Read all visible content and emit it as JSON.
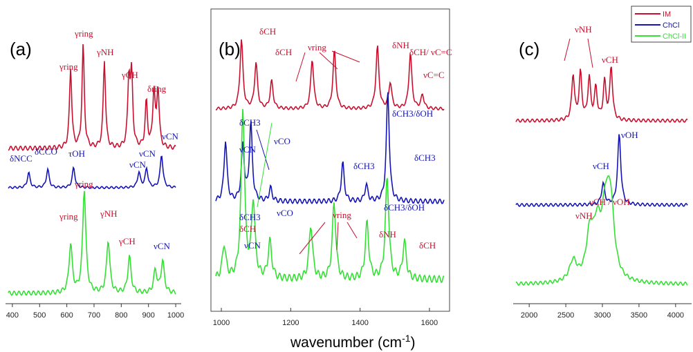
{
  "xlabel": {
    "text": "wavenumber (cm",
    "sup": "-1",
    "close": ")"
  },
  "colors": {
    "IM": "#c8102e",
    "ChCl": "#1414b4",
    "ChCl-II": "#33e033"
  },
  "legend": [
    {
      "name": "IM",
      "color": "#c8102e"
    },
    {
      "name": "ChCl",
      "color": "#1414b4"
    },
    {
      "name": "ChCl-II",
      "color": "#33e033"
    }
  ],
  "chart_data": [
    {
      "panel": "(a)",
      "type": "line",
      "xlim": [
        380,
        1010
      ],
      "ticks": [
        400,
        500,
        600,
        700,
        800,
        900,
        1000
      ],
      "series": [
        {
          "name": "IM",
          "color": "#c8102e",
          "peaks": [
            [
              614,
              0.78
            ],
            [
              660,
              1.0
            ],
            [
              738,
              0.86
            ],
            [
              828,
              0.66
            ],
            [
              838,
              0.68
            ],
            [
              892,
              0.45
            ],
            [
              920,
              0.56
            ],
            [
              935,
              0.58
            ]
          ]
        },
        {
          "name": "ChCl",
          "color": "#1414b4",
          "peaks": [
            [
              460,
              0.3
            ],
            [
              530,
              0.37
            ],
            [
              625,
              0.4
            ],
            [
              865,
              0.31
            ],
            [
              893,
              0.38
            ],
            [
              948,
              0.66
            ]
          ]
        },
        {
          "name": "ChCl-II",
          "color": "#33e033",
          "peaks": [
            [
              614,
              0.47
            ],
            [
              664,
              1.0
            ],
            [
              752,
              0.51
            ],
            [
              830,
              0.35
            ],
            [
              925,
              0.22
            ],
            [
              952,
              0.31
            ]
          ]
        }
      ],
      "annotations": [
        {
          "text": "γring",
          "color": "#c8102e"
        },
        {
          "text": "γring",
          "color": "#c8102e"
        },
        {
          "text": "γNH",
          "color": "#c8102e"
        },
        {
          "text": "γCH",
          "color": "#c8102e"
        },
        {
          "text": "δring",
          "color": "#c8102e"
        },
        {
          "text": "νCN",
          "color": "#1414b4"
        },
        {
          "text": "δNCC",
          "color": "#1414b4"
        },
        {
          "text": "δCCO",
          "color": "#1414b4"
        },
        {
          "text": "τOH",
          "color": "#1414b4"
        },
        {
          "text": "νCN",
          "color": "#1414b4"
        },
        {
          "text": "νCN",
          "color": "#1414b4"
        },
        {
          "text": "γring",
          "color": "#c8102e"
        },
        {
          "text": "γring",
          "color": "#c8102e"
        },
        {
          "text": "γNH",
          "color": "#c8102e"
        },
        {
          "text": "γCH",
          "color": "#c8102e"
        },
        {
          "text": "νCN",
          "color": "#1414b4"
        }
      ]
    },
    {
      "panel": "(b)",
      "type": "line",
      "xlim": [
        980,
        1650
      ],
      "ticks": [
        1000,
        1200,
        1400,
        1600
      ],
      "series": [
        {
          "name": "IM",
          "color": "#c8102e",
          "peaks": [
            [
              1058,
              1.0
            ],
            [
              1100,
              0.66
            ],
            [
              1145,
              0.4
            ],
            [
              1262,
              0.72
            ],
            [
              1326,
              0.84
            ],
            [
              1450,
              0.9
            ],
            [
              1487,
              0.38
            ],
            [
              1545,
              0.8
            ],
            [
              1580,
              0.2
            ]
          ]
        },
        {
          "name": "ChCl",
          "color": "#1414b4",
          "peaks": [
            [
              1012,
              0.55
            ],
            [
              1062,
              0.5
            ],
            [
              1085,
              0.7
            ],
            [
              1142,
              0.12
            ],
            [
              1350,
              0.35
            ],
            [
              1418,
              0.15
            ],
            [
              1480,
              1.0
            ]
          ]
        },
        {
          "name": "ChCl-II",
          "color": "#33e033",
          "peaks": [
            [
              1008,
              0.2
            ],
            [
              1062,
              1.0
            ],
            [
              1092,
              0.45
            ],
            [
              1140,
              0.22
            ],
            [
              1258,
              0.32
            ],
            [
              1325,
              0.45
            ],
            [
              1420,
              0.33
            ],
            [
              1478,
              0.6
            ],
            [
              1528,
              0.22
            ]
          ]
        }
      ],
      "annotations": [
        {
          "text": "δCH",
          "color": "#c8102e"
        },
        {
          "text": "δCH",
          "color": "#c8102e"
        },
        {
          "text": "νring",
          "color": "#c8102e"
        },
        {
          "text": "δNH",
          "color": "#c8102e"
        },
        {
          "text": "δCH/",
          "color": "#c8102e"
        },
        {
          "text": "νC=C",
          "color": "#c8102e"
        },
        {
          "text": "νC=C",
          "color": "#c8102e"
        },
        {
          "text": "δCH3/δOH",
          "color": "#1414b4"
        },
        {
          "text": "δCH3",
          "color": "#1414b4"
        },
        {
          "text": "νCN",
          "color": "#1414b4"
        },
        {
          "text": "νCO",
          "color": "#1414b4"
        },
        {
          "text": "δCH3",
          "color": "#1414b4"
        },
        {
          "text": "δCH3",
          "color": "#1414b4"
        },
        {
          "text": "δCH3/δOH",
          "color": "#1414b4"
        },
        {
          "text": "δCH3",
          "color": "#1414b4"
        },
        {
          "text": "δCH",
          "color": "#c8102e"
        },
        {
          "text": "νCO",
          "color": "#1414b4"
        },
        {
          "text": "νring",
          "color": "#c8102e"
        },
        {
          "text": "νCN",
          "color": "#1414b4"
        },
        {
          "text": "δNH",
          "color": "#c8102e"
        },
        {
          "text": "δCH",
          "color": "#c8102e"
        }
      ]
    },
    {
      "panel": "(c)",
      "type": "line",
      "xlim": [
        1800,
        4200
      ],
      "ticks": [
        2000,
        2500,
        3000,
        3500,
        4000
      ],
      "series": [
        {
          "name": "IM",
          "color": "#c8102e",
          "peaks": [
            [
              2600,
              0.6
            ],
            [
              2700,
              0.62
            ],
            [
              2820,
              0.55
            ],
            [
              2910,
              0.42
            ],
            [
              3030,
              0.5
            ],
            [
              3120,
              0.7
            ]
          ]
        },
        {
          "name": "ChCl",
          "color": "#1414b4",
          "peaks": [
            [
              3010,
              0.3
            ],
            [
              3230,
              1.0
            ]
          ]
        },
        {
          "name": "ChCl-II",
          "color": "#33e033",
          "peaks": [
            [
              2600,
              0.25
            ],
            [
              2830,
              0.55
            ],
            [
              2930,
              0.55
            ],
            [
              3040,
              0.7
            ],
            [
              3110,
              0.9
            ]
          ]
        }
      ],
      "annotations": [
        {
          "text": "νNH",
          "color": "#c8102e"
        },
        {
          "text": "νCH",
          "color": "#c8102e"
        },
        {
          "text": "νOH",
          "color": "#1414b4"
        },
        {
          "text": "νCH",
          "color": "#1414b4"
        },
        {
          "text": "νCH / νOH",
          "color": "#c8102e"
        },
        {
          "text": "νNH",
          "color": "#c8102e"
        }
      ]
    }
  ]
}
